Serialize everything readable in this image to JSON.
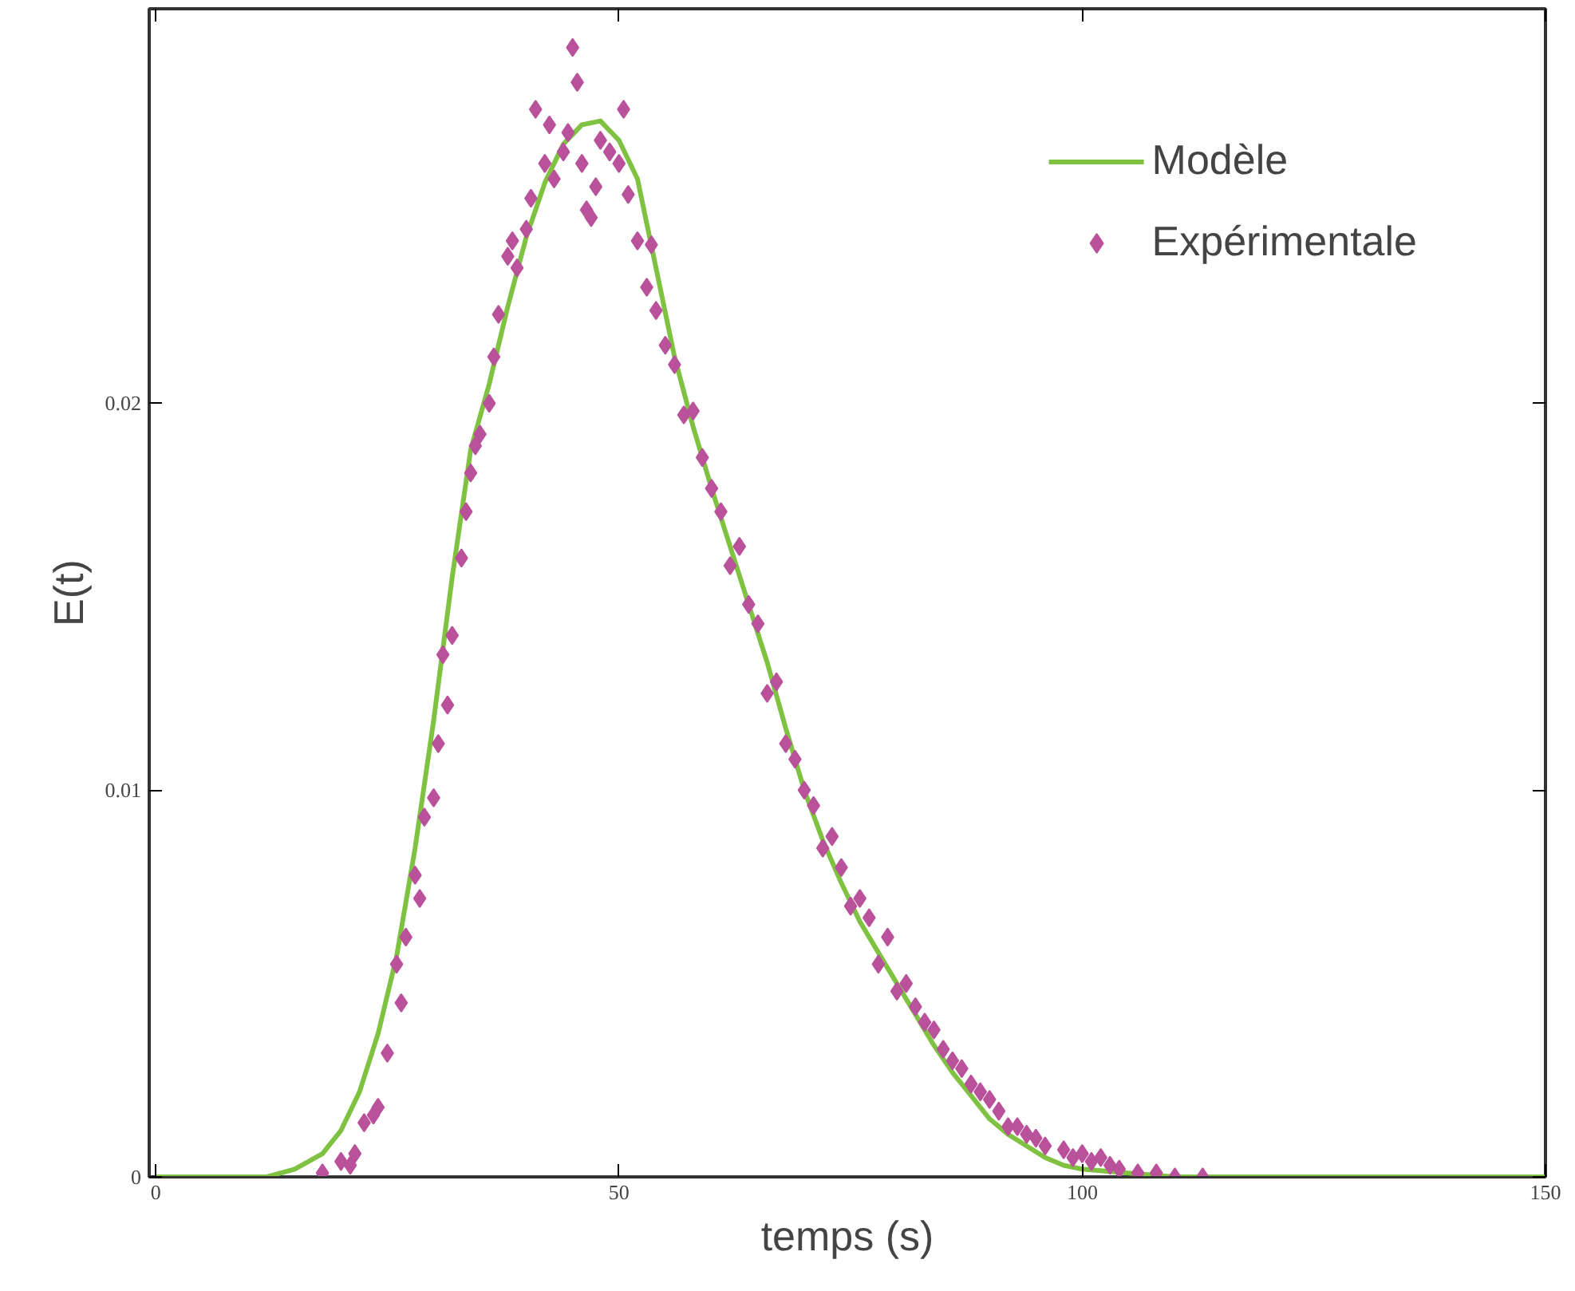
{
  "chart_data": {
    "type": "line",
    "xlabel": "temps (s)",
    "ylabel": "E(t)",
    "xlim": [
      -0.7,
      150
    ],
    "ylim": [
      0,
      0.0302
    ],
    "xticks": [
      0,
      50,
      100,
      150
    ],
    "yticks": [
      0,
      0.01,
      0.02
    ],
    "grid": false,
    "legend": "top right",
    "series": [
      {
        "name": "Modèle",
        "color": "#7fc241",
        "line_style": "solid",
        "marker": "none",
        "x": [
          0,
          12,
          15,
          18,
          20,
          22,
          24,
          26,
          28,
          30,
          32,
          34,
          36,
          38,
          40,
          42,
          44,
          46,
          48,
          50,
          52,
          54,
          56,
          58,
          60,
          62,
          64,
          66,
          68,
          70,
          72,
          74,
          76,
          78,
          80,
          82,
          84,
          86,
          88,
          90,
          92,
          94,
          96,
          98,
          100,
          105,
          110,
          150
        ],
        "values": [
          0,
          0,
          0.0002,
          0.0006,
          0.0012,
          0.0022,
          0.0037,
          0.0057,
          0.0085,
          0.0118,
          0.0155,
          0.0188,
          0.0205,
          0.0225,
          0.0243,
          0.0257,
          0.0267,
          0.0272,
          0.0273,
          0.0268,
          0.0258,
          0.0235,
          0.0212,
          0.0194,
          0.0178,
          0.0163,
          0.0148,
          0.0133,
          0.0116,
          0.01,
          0.0087,
          0.0076,
          0.0066,
          0.0058,
          0.005,
          0.0042,
          0.0034,
          0.0027,
          0.0021,
          0.0015,
          0.0011,
          0.0008,
          0.0005,
          0.0003,
          0.0002,
          0.0001,
          0,
          0
        ]
      },
      {
        "name": "Expérimentale",
        "type": "scatter",
        "color": "#b9519b",
        "marker": "diamond",
        "x": [
          18,
          20,
          21,
          21.5,
          22.5,
          23.5,
          24,
          25,
          26,
          26.5,
          27,
          28,
          28.5,
          29,
          30,
          30.5,
          31,
          31.5,
          32,
          33,
          33.5,
          34,
          34.5,
          35,
          36,
          36.5,
          37,
          38,
          38.5,
          39,
          40,
          40.5,
          41,
          42,
          42.5,
          43,
          44,
          44.5,
          45,
          45.5,
          46,
          46.5,
          47,
          47.5,
          48,
          49,
          50,
          50.5,
          51,
          52,
          53,
          53.5,
          54,
          55,
          56,
          57,
          58,
          59,
          60,
          61,
          62,
          63,
          64,
          65,
          66,
          67,
          68,
          69,
          70,
          71,
          72,
          73,
          74,
          75,
          76,
          77,
          78,
          79,
          80,
          81,
          82,
          83,
          84,
          85,
          86,
          87,
          88,
          89,
          90,
          91,
          92,
          93,
          94,
          95,
          96,
          98,
          99,
          100,
          101,
          102,
          103,
          104,
          106,
          108,
          110,
          113
        ],
        "values": [
          0.0001,
          0.0004,
          0.0003,
          0.0006,
          0.0014,
          0.0016,
          0.0018,
          0.0032,
          0.0055,
          0.0045,
          0.0062,
          0.0078,
          0.0072,
          0.0093,
          0.0098,
          0.0112,
          0.0135,
          0.0122,
          0.014,
          0.016,
          0.0172,
          0.0182,
          0.0189,
          0.0192,
          0.02,
          0.0212,
          0.0223,
          0.0238,
          0.0242,
          0.0235,
          0.0245,
          0.0253,
          0.0276,
          0.0262,
          0.0272,
          0.0258,
          0.0265,
          0.027,
          0.0292,
          0.0283,
          0.0262,
          0.025,
          0.0248,
          0.0256,
          0.0268,
          0.0265,
          0.0262,
          0.0276,
          0.0254,
          0.0242,
          0.023,
          0.0241,
          0.0224,
          0.0215,
          0.021,
          0.0197,
          0.0198,
          0.0186,
          0.0178,
          0.0172,
          0.0158,
          0.0163,
          0.0148,
          0.0143,
          0.0125,
          0.0128,
          0.0112,
          0.0108,
          0.01,
          0.0096,
          0.0085,
          0.0088,
          0.008,
          0.007,
          0.0072,
          0.0067,
          0.0055,
          0.0062,
          0.0048,
          0.005,
          0.0044,
          0.004,
          0.0038,
          0.0033,
          0.003,
          0.0028,
          0.0024,
          0.0022,
          0.002,
          0.0017,
          0.0013,
          0.0013,
          0.0011,
          0.001,
          0.0008,
          0.0007,
          0.0005,
          0.0006,
          0.0004,
          0.0005,
          0.0003,
          0.0002,
          0.0001,
          0.0001,
          0,
          0
        ]
      }
    ]
  }
}
